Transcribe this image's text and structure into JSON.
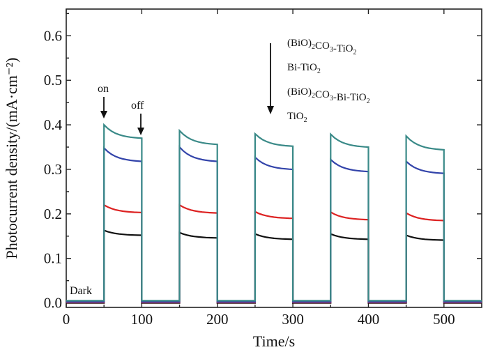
{
  "chart_data": {
    "type": "line",
    "title": "",
    "xlabel": "Time/s",
    "ylabel": "Photocurrent density/(mA·cm⁻²)",
    "xlim": [
      0,
      550
    ],
    "ylim": [
      -0.01,
      0.66
    ],
    "xticks": [
      0,
      100,
      200,
      300,
      400,
      500
    ],
    "yticks": [
      0.0,
      0.1,
      0.2,
      0.3,
      0.4,
      0.5,
      0.6
    ],
    "xtick_labels": [
      "0",
      "100",
      "200",
      "300",
      "400",
      "500"
    ],
    "ytick_labels": [
      "0.0",
      "0.1",
      "0.2",
      "0.3",
      "0.4",
      "0.5",
      "0.6"
    ],
    "grid": false,
    "legend_position": "top-right",
    "on_intervals": [
      [
        50,
        100
      ],
      [
        150,
        200
      ],
      [
        250,
        300
      ],
      [
        350,
        400
      ],
      [
        450,
        500
      ]
    ],
    "series": [
      {
        "name": "(BiO)2CO3-TiO2",
        "color": "#3a8a88",
        "dark": 0.005,
        "start": [
          0.4,
          0.387,
          0.38,
          0.379,
          0.375
        ],
        "end": [
          0.37,
          0.356,
          0.352,
          0.35,
          0.344
        ]
      },
      {
        "name": "Bi-TiO2",
        "color": "#3344aa",
        "dark": 0.002,
        "start": [
          0.348,
          0.35,
          0.327,
          0.322,
          0.318
        ],
        "end": [
          0.318,
          0.318,
          0.3,
          0.295,
          0.291
        ]
      },
      {
        "name": "(BiO)2CO3-Bi-TiO2",
        "color": "#dd2222",
        "dark": 0.001,
        "start": [
          0.22,
          0.22,
          0.205,
          0.204,
          0.202
        ],
        "end": [
          0.203,
          0.202,
          0.19,
          0.187,
          0.185
        ]
      },
      {
        "name": "TiO2",
        "color": "#111111",
        "dark": 0.0,
        "start": [
          0.163,
          0.158,
          0.155,
          0.155,
          0.152
        ],
        "end": [
          0.152,
          0.146,
          0.143,
          0.143,
          0.141
        ]
      }
    ],
    "legend": [
      {
        "base": "(BiO)",
        "sub1": "2",
        "mid": "CO",
        "sub2": "3",
        "tail": "-TiO",
        "sub3": "2"
      },
      {
        "base": "Bi-TiO",
        "sub1": "2",
        "mid": "",
        "sub2": "",
        "tail": "",
        "sub3": ""
      },
      {
        "base": "(BiO)",
        "sub1": "2",
        "mid": "CO",
        "sub2": "3",
        "tail": "-Bi-TiO",
        "sub3": "2"
      },
      {
        "base": "TiO",
        "sub1": "2",
        "mid": "",
        "sub2": "",
        "tail": "",
        "sub3": ""
      }
    ],
    "annotations": {
      "on": "on",
      "off": "off",
      "dark": "Dark"
    }
  }
}
